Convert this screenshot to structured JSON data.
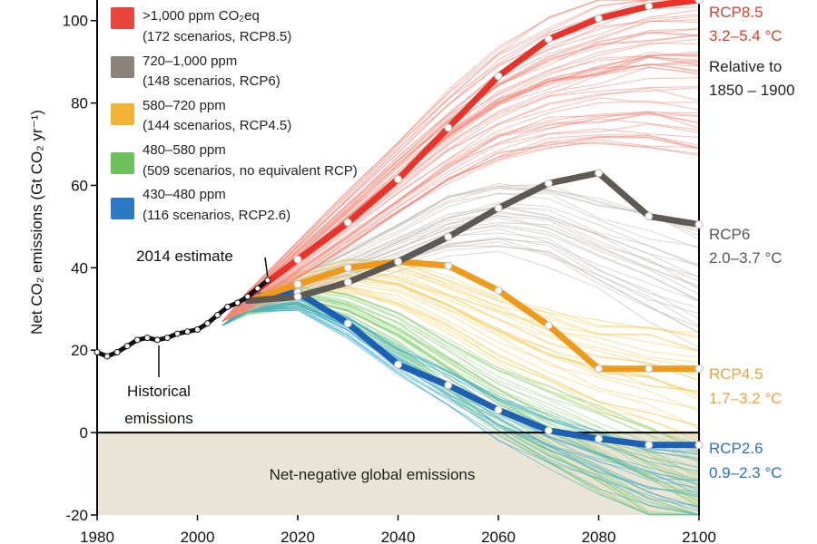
{
  "chart_data": {
    "type": "line",
    "ylabel": "Net CO₂ emissions (Gt CO₂ yr⁻¹)",
    "xlim": [
      1980,
      2100
    ],
    "ylim": [
      -20,
      105
    ],
    "x_ticks": [
      1980,
      2000,
      2020,
      2040,
      2060,
      2080,
      2100
    ],
    "y_ticks": [
      -20,
      0,
      20,
      40,
      60,
      80,
      100
    ],
    "legend_position": "top-left",
    "negative_region_label": "Net-negative global emissions",
    "annotations": {
      "estimate": "2014 estimate",
      "historical_line1": "Historical",
      "historical_line2": "emissions"
    },
    "legend": [
      {
        "line1": ">1,000 ppm CO₂eq",
        "line2": "(172 scenarios, RCP8.5)",
        "color": "#e8453c"
      },
      {
        "line1": "720–1,000 ppm",
        "line2": "(148 scenarios, RCP6)",
        "color": "#8c8279"
      },
      {
        "line1": "580–720 ppm",
        "line2": "(144 scenarios, RCP4.5)",
        "color": "#f2b233"
      },
      {
        "line1": "480–580 ppm",
        "line2": "(509 scenarios, no equivalent RCP)",
        "color": "#6cc25a"
      },
      {
        "line1": "430–480 ppm",
        "line2": "(116 scenarios, RCP2.6)",
        "color": "#2e79c7"
      }
    ],
    "historical": {
      "x": [
        1980,
        1982,
        1984,
        1986,
        1988,
        1990,
        1992,
        1994,
        1996,
        1998,
        2000,
        2002,
        2004,
        2006,
        2008,
        2010,
        2012,
        2014
      ],
      "y": [
        19.5,
        18.5,
        19.5,
        21,
        22.5,
        23,
        22.5,
        23,
        24,
        24.5,
        25,
        26.5,
        28.5,
        30.5,
        31.5,
        33,
        35,
        37
      ]
    },
    "series": [
      {
        "name": "RCP8.5",
        "range": "3.2–5.4 °C",
        "color": "#e8332b",
        "label_color": "#d9412f",
        "x": [
          2010,
          2020,
          2030,
          2040,
          2050,
          2060,
          2070,
          2080,
          2090,
          2100
        ],
        "y": [
          33,
          42,
          51,
          61.5,
          74,
          86.5,
          95.5,
          100.5,
          103.5,
          105
        ]
      },
      {
        "name": "RCP6",
        "range": "2.0–3.7 °C",
        "color": "#5e5953",
        "label_color": "#555555",
        "x": [
          2010,
          2020,
          2030,
          2040,
          2050,
          2060,
          2070,
          2080,
          2090,
          2100
        ],
        "y": [
          32,
          33,
          36.5,
          41.5,
          47.5,
          54.5,
          60.5,
          63,
          52.5,
          50.5
        ]
      },
      {
        "name": "RCP4.5",
        "range": "1.7–3.2 °C",
        "color": "#ee9a1c",
        "label_color": "#e8a33a",
        "x": [
          2010,
          2020,
          2030,
          2040,
          2050,
          2060,
          2070,
          2080,
          2090,
          2100
        ],
        "y": [
          32,
          36,
          40,
          41.5,
          40.5,
          34.5,
          26,
          15.5,
          15.5,
          15.5
        ]
      },
      {
        "name": "RCP2.6",
        "range": "0.9–2.3 °C",
        "color": "#1d5fb3",
        "label_color": "#2e6fc2",
        "x": [
          2010,
          2020,
          2030,
          2040,
          2050,
          2060,
          2070,
          2080,
          2090,
          2100
        ],
        "y": [
          33,
          34,
          26.5,
          16.5,
          11.5,
          5.5,
          0.5,
          -1.5,
          -3,
          -3
        ]
      }
    ],
    "relative_note_line1": "Relative to",
    "relative_note_line2": "1850 – 1900",
    "colors": {
      "negative_fill": "#e9e4d3",
      "axis": "#000000"
    }
  }
}
